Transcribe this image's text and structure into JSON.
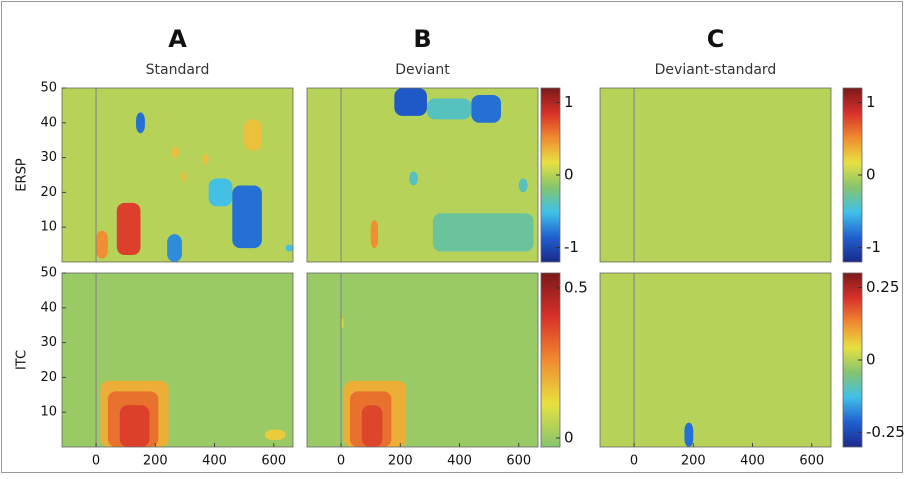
{
  "chart_data": [
    {
      "type": "heatmap",
      "label": "A",
      "title": "Standard",
      "ylabel": "ERSP",
      "xlim": [
        -115,
        665
      ],
      "ylim": [
        0,
        50
      ],
      "yticks": [
        10,
        20,
        30,
        40,
        50
      ],
      "event_line": 0,
      "clim": [
        -1.2,
        1.2
      ],
      "background": 0,
      "colors": [
        "#1a2a8a",
        "#2060d0",
        "#40c0e8",
        "#85c46f",
        "#e8e040",
        "#f08a30",
        "#d8302a",
        "#7a1a1a"
      ],
      "blobs": [
        {
          "x": [
            70,
            150
          ],
          "y": [
            2,
            17
          ],
          "value": 0.8
        },
        {
          "x": [
            0,
            40
          ],
          "y": [
            1,
            9
          ],
          "value": 0.5
        },
        {
          "x": [
            240,
            290
          ],
          "y": [
            0,
            8
          ],
          "value": -0.7
        },
        {
          "x": [
            135,
            165
          ],
          "y": [
            37,
            43
          ],
          "value": -0.8
        },
        {
          "x": [
            255,
            280
          ],
          "y": [
            30,
            33
          ],
          "value": 0.3
        },
        {
          "x": [
            360,
            380
          ],
          "y": [
            28,
            31
          ],
          "value": 0.3
        },
        {
          "x": [
            290,
            305
          ],
          "y": [
            23,
            26
          ],
          "value": 0.3
        },
        {
          "x": [
            380,
            460
          ],
          "y": [
            16,
            24
          ],
          "value": -0.5
        },
        {
          "x": [
            460,
            560
          ],
          "y": [
            4,
            22
          ],
          "value": -0.8
        },
        {
          "x": [
            500,
            560
          ],
          "y": [
            32,
            41
          ],
          "value": 0.3
        },
        {
          "x": [
            640,
            665
          ],
          "y": [
            3,
            5
          ],
          "value": -0.5
        }
      ]
    },
    {
      "type": "heatmap",
      "label": "B",
      "title": "Deviant",
      "xlim": [
        -115,
        665
      ],
      "ylim": [
        0,
        50
      ],
      "event_line": 0,
      "clim": [
        -1.2,
        1.2
      ],
      "background": 0,
      "colors": [
        "#1a2a8a",
        "#2060d0",
        "#40c0e8",
        "#85c46f",
        "#e8e040",
        "#f08a30",
        "#d8302a",
        "#7a1a1a"
      ],
      "colorbar_ticks": [
        1,
        0,
        -1
      ],
      "blobs": [
        {
          "x": [
            180,
            290
          ],
          "y": [
            42,
            50
          ],
          "value": -0.9
        },
        {
          "x": [
            440,
            540
          ],
          "y": [
            40,
            48
          ],
          "value": -0.8
        },
        {
          "x": [
            290,
            440
          ],
          "y": [
            41,
            47
          ],
          "value": -0.4
        },
        {
          "x": [
            310,
            650
          ],
          "y": [
            3,
            14
          ],
          "value": -0.3
        },
        {
          "x": [
            100,
            125
          ],
          "y": [
            4,
            12
          ],
          "value": 0.5
        },
        {
          "x": [
            600,
            630
          ],
          "y": [
            20,
            24
          ],
          "value": -0.4
        },
        {
          "x": [
            230,
            260
          ],
          "y": [
            22,
            26
          ],
          "value": -0.4
        }
      ]
    },
    {
      "type": "heatmap",
      "label": "C",
      "title": "Deviant-standard",
      "xlim": [
        -115,
        665
      ],
      "ylim": [
        0,
        50
      ],
      "event_line": 0,
      "clim": [
        -1.2,
        1.2
      ],
      "background": 0,
      "colors": [
        "#1a2a8a",
        "#2060d0",
        "#40c0e8",
        "#85c46f",
        "#e8e040",
        "#f08a30",
        "#d8302a",
        "#7a1a1a"
      ],
      "colorbar_ticks": [
        1,
        0,
        -1
      ],
      "blobs": []
    },
    {
      "type": "heatmap",
      "ylabel": "ITC",
      "xlim": [
        -115,
        665
      ],
      "ylim": [
        0,
        50
      ],
      "xticks": [
        0,
        200,
        400,
        600
      ],
      "yticks": [
        10,
        20,
        30,
        40,
        50
      ],
      "event_line": 0,
      "clim": [
        -0.03,
        0.55
      ],
      "background": 0,
      "colors": [
        "#85c46f",
        "#e8e040",
        "#f08a30",
        "#d8302a",
        "#7a1a1a"
      ],
      "blobs": [
        {
          "x": [
            15,
            245
          ],
          "y": [
            0,
            19
          ],
          "value": 0.2
        },
        {
          "x": [
            40,
            210
          ],
          "y": [
            0,
            16
          ],
          "value": 0.3
        },
        {
          "x": [
            80,
            180
          ],
          "y": [
            0,
            12
          ],
          "value": 0.38
        },
        {
          "x": [
            570,
            640
          ],
          "y": [
            2,
            5
          ],
          "value": 0.15
        }
      ]
    },
    {
      "type": "heatmap",
      "xlim": [
        -115,
        665
      ],
      "ylim": [
        0,
        50
      ],
      "xticks": [
        0,
        200,
        400,
        600
      ],
      "event_line": 0,
      "clim": [
        -0.03,
        0.55
      ],
      "background": 0,
      "colors": [
        "#85c46f",
        "#e8e040",
        "#f08a30",
        "#d8302a",
        "#7a1a1a"
      ],
      "colorbar_ticks": [
        0.5,
        0
      ],
      "blobs": [
        {
          "x": [
            10,
            220
          ],
          "y": [
            0,
            19
          ],
          "value": 0.2
        },
        {
          "x": [
            30,
            170
          ],
          "y": [
            0,
            16
          ],
          "value": 0.3
        },
        {
          "x": [
            70,
            140
          ],
          "y": [
            0,
            12
          ],
          "value": 0.37
        },
        {
          "x": [
            0,
            8
          ],
          "y": [
            34,
            37
          ],
          "value": 0.1
        }
      ]
    },
    {
      "type": "heatmap",
      "xlim": [
        -115,
        665
      ],
      "ylim": [
        0,
        50
      ],
      "xticks": [
        0,
        200,
        400,
        600
      ],
      "event_line": 0,
      "clim": [
        -0.3,
        0.3
      ],
      "background": 0,
      "colors": [
        "#1a2a8a",
        "#2060d0",
        "#40c0e8",
        "#85c46f",
        "#e8e040",
        "#f08a30",
        "#d8302a",
        "#7a1a1a"
      ],
      "colorbar_ticks": [
        0.25,
        0,
        -0.25
      ],
      "blobs": [
        {
          "x": [
            170,
            200
          ],
          "y": [
            0,
            7
          ],
          "value": -0.2
        }
      ]
    }
  ]
}
